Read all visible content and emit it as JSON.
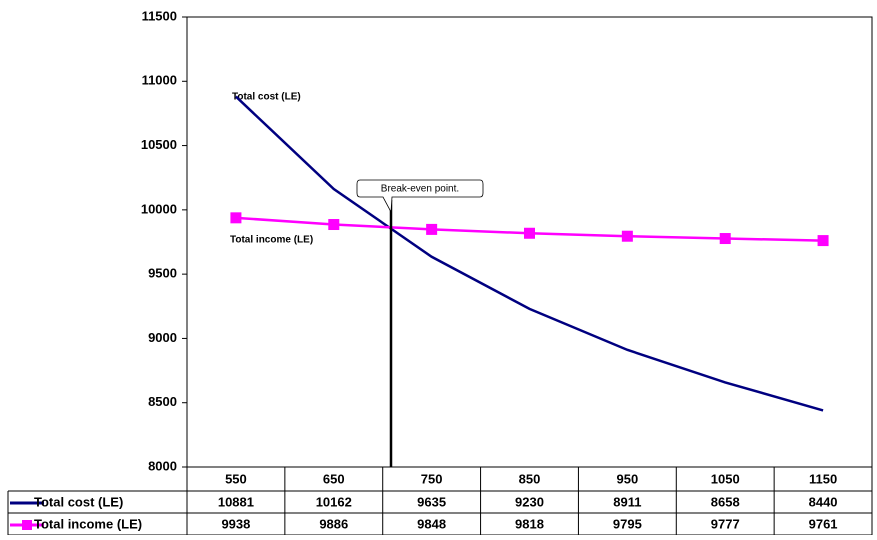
{
  "chart_data": {
    "type": "line",
    "categories": [
      "550",
      "650",
      "750",
      "850",
      "950",
      "1050",
      "1150"
    ],
    "series": [
      {
        "name": "Total cost (LE)",
        "color": "#000080",
        "marker": "none",
        "values": [
          10881,
          10162,
          9635,
          9230,
          8911,
          8658,
          8440
        ]
      },
      {
        "name": "Total income (LE)",
        "color": "#ff00ff",
        "marker": "square",
        "values": [
          9938,
          9886,
          9848,
          9818,
          9795,
          9777,
          9761
        ]
      }
    ],
    "ylim": [
      8000,
      11500
    ],
    "yticks": [
      8000,
      8500,
      9000,
      9500,
      10000,
      10500,
      11000,
      11500
    ],
    "grid": false,
    "annotations": [
      "Total cost (LE)",
      "Total income (LE)",
      "Break-even point."
    ]
  }
}
